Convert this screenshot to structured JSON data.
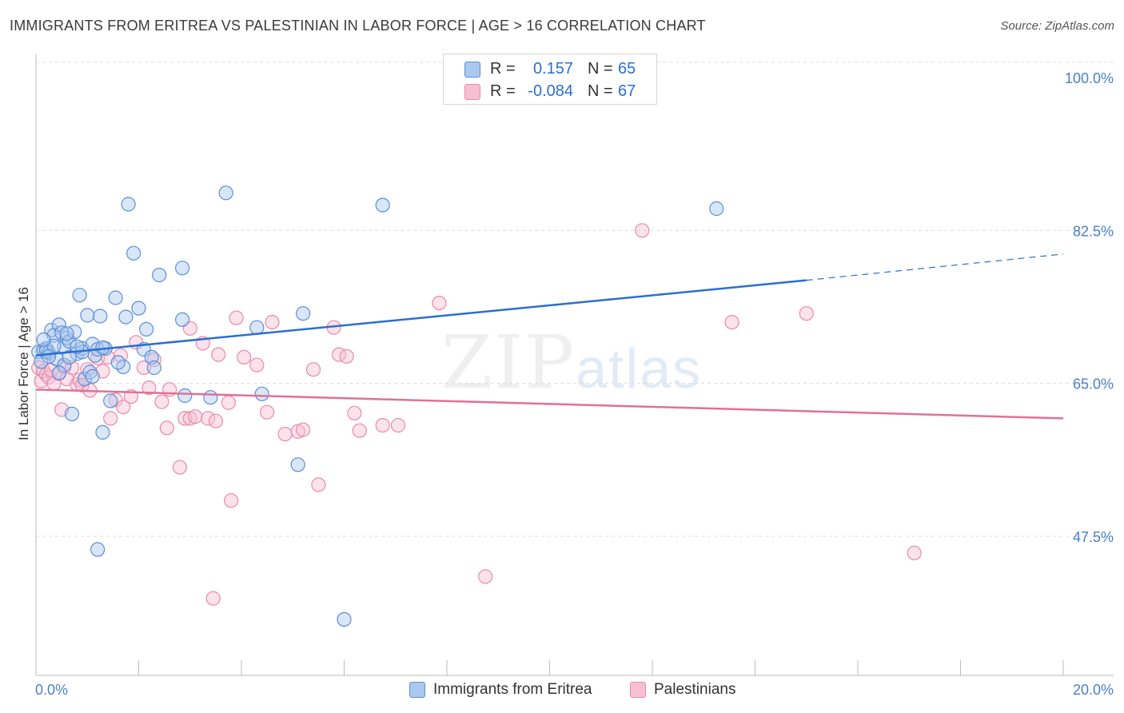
{
  "header": {
    "title": "IMMIGRANTS FROM ERITREA VS PALESTINIAN IN LABOR FORCE | AGE > 16 CORRELATION CHART",
    "source": "Source: ZipAtlas.com"
  },
  "watermark": {
    "zip": "ZIP",
    "atlas": "atlas"
  },
  "legend": {
    "rows": [
      {
        "r_label": "R =",
        "r_value": "0.157",
        "n_label": "N =",
        "n_value": "65",
        "color": "#6a9fe0"
      },
      {
        "r_label": "R =",
        "r_value": "-0.084",
        "n_label": "N =",
        "n_value": "67",
        "color": "#ee8db0"
      }
    ]
  },
  "bottom_legend": {
    "series1": "Immigrants from Eritrea",
    "series2": "Palestinians"
  },
  "colors": {
    "blue_fill": "#aac8f0",
    "blue_stroke": "#5b8fd6",
    "blue_line": "#2a6fd0",
    "pink_fill": "#f7bfd2",
    "pink_stroke": "#e88bab",
    "pink_line": "#e0709a",
    "tick_label": "#4a7fcc",
    "grid": "#dcdcdc"
  },
  "chart_data": {
    "type": "scatter",
    "title": "IMMIGRANTS FROM ERITREA VS PALESTINIAN IN LABOR FORCE | AGE > 16 CORRELATION CHART",
    "xlabel": "",
    "ylabel": "In Labor Force | Age > 16",
    "xlim": [
      0,
      20
    ],
    "ylim": [
      32.5,
      102
    ],
    "x_tick_labels": [
      "0.0%",
      "20.0%"
    ],
    "y_ticks": [
      47.5,
      65.0,
      82.5,
      100.0
    ],
    "y_tick_labels": [
      "47.5%",
      "65.0%",
      "82.5%",
      "100.0%"
    ],
    "series": [
      {
        "name": "Immigrants from Eritrea",
        "r": 0.157,
        "n": 65,
        "trend": {
          "x0": 0.0,
          "y0": 68.2,
          "x1": 15.0,
          "y1": 76.8,
          "dash_to_x": 20.0,
          "dash_to_y": 79.8
        },
        "points": [
          [
            0.05,
            68.6
          ],
          [
            0.1,
            67.5
          ],
          [
            0.15,
            68.8
          ],
          [
            0.2,
            69.0
          ],
          [
            0.25,
            68.5
          ],
          [
            0.3,
            71.1
          ],
          [
            0.35,
            70.5
          ],
          [
            0.4,
            67.8
          ],
          [
            0.45,
            71.7
          ],
          [
            0.5,
            70.8
          ],
          [
            0.55,
            69.2
          ],
          [
            0.6,
            70.2
          ],
          [
            0.65,
            69.8
          ],
          [
            0.7,
            61.5
          ],
          [
            0.75,
            70.9
          ],
          [
            0.8,
            68.4
          ],
          [
            0.85,
            75.1
          ],
          [
            0.9,
            69.0
          ],
          [
            0.95,
            65.5
          ],
          [
            1.0,
            72.8
          ],
          [
            1.05,
            66.3
          ],
          [
            1.1,
            69.5
          ],
          [
            1.15,
            68.2
          ],
          [
            1.2,
            68.9
          ],
          [
            1.25,
            72.7
          ],
          [
            1.3,
            59.4
          ],
          [
            1.35,
            69.0
          ],
          [
            1.45,
            63.0
          ],
          [
            1.55,
            74.8
          ],
          [
            1.7,
            66.9
          ],
          [
            1.75,
            72.6
          ],
          [
            1.8,
            85.5
          ],
          [
            1.9,
            79.9
          ],
          [
            2.0,
            73.6
          ],
          [
            2.1,
            68.9
          ],
          [
            2.15,
            71.2
          ],
          [
            2.25,
            68.0
          ],
          [
            2.3,
            66.8
          ],
          [
            2.4,
            77.4
          ],
          [
            2.85,
            78.2
          ],
          [
            2.85,
            72.3
          ],
          [
            2.9,
            63.6
          ],
          [
            3.4,
            63.4
          ],
          [
            3.7,
            86.8
          ],
          [
            4.3,
            71.4
          ],
          [
            4.4,
            63.8
          ],
          [
            5.1,
            55.7
          ],
          [
            5.2,
            73.0
          ],
          [
            6.75,
            85.4
          ],
          [
            0.2,
            68.7
          ],
          [
            0.6,
            70.7
          ],
          [
            1.2,
            46.0
          ],
          [
            6.0,
            38.0
          ],
          [
            13.25,
            85.0
          ],
          [
            0.35,
            69.3
          ],
          [
            0.55,
            67.1
          ],
          [
            0.9,
            68.6
          ],
          [
            1.1,
            65.8
          ],
          [
            0.25,
            68.1
          ],
          [
            0.45,
            66.2
          ],
          [
            0.15,
            70.0
          ],
          [
            0.65,
            68.0
          ],
          [
            1.3,
            69.1
          ],
          [
            0.8,
            69.2
          ],
          [
            1.6,
            67.4
          ]
        ]
      },
      {
        "name": "Palestinians",
        "r": -0.084,
        "n": 67,
        "trend": {
          "x0": 0.0,
          "y0": 64.3,
          "x1": 20.0,
          "y1": 61.0
        },
        "points": [
          [
            0.05,
            66.8
          ],
          [
            0.1,
            65.3
          ],
          [
            0.15,
            66.4
          ],
          [
            0.2,
            66.0
          ],
          [
            0.25,
            65.7
          ],
          [
            0.3,
            66.5
          ],
          [
            0.35,
            65.0
          ],
          [
            0.45,
            66.1
          ],
          [
            0.5,
            62.0
          ],
          [
            0.55,
            66.9
          ],
          [
            0.6,
            65.5
          ],
          [
            0.7,
            66.8
          ],
          [
            0.8,
            64.9
          ],
          [
            0.85,
            65.4
          ],
          [
            0.9,
            64.8
          ],
          [
            1.0,
            66.6
          ],
          [
            1.05,
            64.2
          ],
          [
            1.2,
            67.9
          ],
          [
            1.3,
            66.4
          ],
          [
            1.4,
            68.0
          ],
          [
            1.45,
            61.0
          ],
          [
            1.55,
            63.1
          ],
          [
            1.65,
            68.2
          ],
          [
            1.7,
            62.3
          ],
          [
            1.85,
            63.5
          ],
          [
            1.95,
            69.7
          ],
          [
            2.1,
            66.8
          ],
          [
            2.2,
            64.5
          ],
          [
            2.3,
            67.7
          ],
          [
            2.45,
            62.9
          ],
          [
            2.55,
            59.9
          ],
          [
            2.6,
            64.3
          ],
          [
            2.8,
            55.4
          ],
          [
            2.9,
            61.0
          ],
          [
            3.0,
            71.3
          ],
          [
            3.0,
            61.0
          ],
          [
            3.1,
            61.2
          ],
          [
            3.25,
            69.6
          ],
          [
            3.35,
            61.0
          ],
          [
            3.5,
            60.7
          ],
          [
            3.55,
            68.3
          ],
          [
            3.75,
            62.8
          ],
          [
            3.8,
            51.6
          ],
          [
            3.9,
            72.5
          ],
          [
            4.05,
            68.0
          ],
          [
            4.3,
            67.1
          ],
          [
            4.5,
            61.7
          ],
          [
            4.6,
            72.0
          ],
          [
            4.85,
            59.2
          ],
          [
            5.1,
            59.5
          ],
          [
            5.2,
            59.7
          ],
          [
            5.4,
            66.6
          ],
          [
            5.5,
            53.4
          ],
          [
            5.8,
            71.4
          ],
          [
            5.9,
            68.3
          ],
          [
            6.05,
            68.1
          ],
          [
            6.2,
            61.6
          ],
          [
            6.3,
            59.6
          ],
          [
            6.75,
            60.2
          ],
          [
            7.05,
            60.2
          ],
          [
            7.85,
            74.2
          ],
          [
            8.75,
            42.9
          ],
          [
            11.8,
            82.5
          ],
          [
            13.55,
            72.0
          ],
          [
            15.0,
            73.0
          ],
          [
            17.1,
            45.6
          ],
          [
            3.45,
            40.4
          ]
        ]
      }
    ]
  }
}
